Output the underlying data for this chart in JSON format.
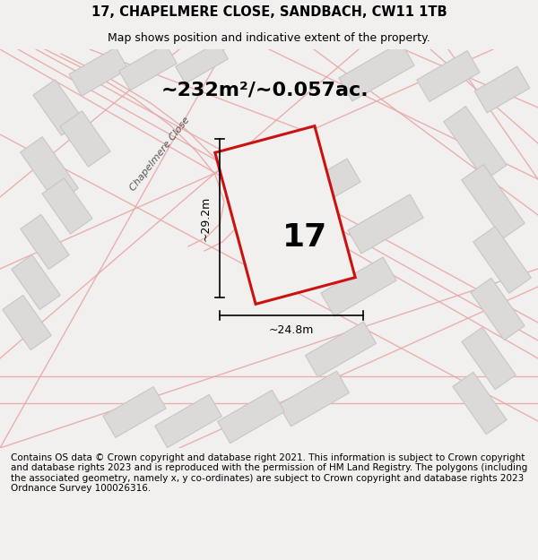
{
  "title_line1": "17, CHAPELMERE CLOSE, SANDBACH, CW11 1TB",
  "title_line2": "Map shows position and indicative extent of the property.",
  "area_text": "~232m²/~0.057ac.",
  "property_number": "17",
  "dim_width": "~24.8m",
  "dim_height": "~29.2m",
  "road_label": "Chapelmere Close",
  "footer_text": "Contains OS data © Crown copyright and database right 2021. This information is subject to Crown copyright and database rights 2023 and is reproduced with the permission of HM Land Registry. The polygons (including the associated geometry, namely x, y co-ordinates) are subject to Crown copyright and database rights 2023 Ordnance Survey 100026316.",
  "bg_color": "#f2f0ef",
  "map_bg": "#f2f0ef",
  "plot_edge_color": "#cc1111",
  "building_fill": "#dcdad9",
  "building_edge": "#c8c5c3",
  "road_line_color": "#e8a8a8",
  "title_fontsize": 10.5,
  "subtitle_fontsize": 9,
  "footer_fontsize": 7.5,
  "area_fontsize": 16,
  "number_fontsize": 26,
  "dim_fontsize": 9
}
